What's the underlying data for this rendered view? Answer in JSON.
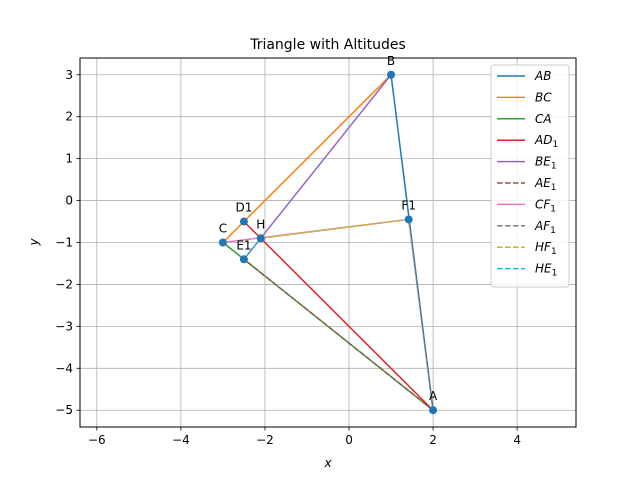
{
  "chart_data": {
    "type": "line",
    "title": "Triangle with Altitudes",
    "xlabel": "x",
    "ylabel": "y",
    "xlim": [
      -6.4,
      5.4
    ],
    "ylim": [
      -5.4,
      3.4
    ],
    "xticks": [
      -6,
      -4,
      -2,
      0,
      2,
      4
    ],
    "yticks": [
      -5,
      -4,
      -3,
      -2,
      -1,
      0,
      1,
      2,
      3
    ],
    "xtick_labels": [
      "−6",
      "−4",
      "−2",
      "0",
      "2",
      "4"
    ],
    "ytick_labels": [
      "−5",
      "−4",
      "−3",
      "−2",
      "−1",
      "0",
      "1",
      "2",
      "3"
    ],
    "grid": true,
    "legend_position": "upper right",
    "points": [
      {
        "label": "A",
        "x": 2,
        "y": -5
      },
      {
        "label": "B",
        "x": 1,
        "y": 3
      },
      {
        "label": "C",
        "x": -3,
        "y": -1
      },
      {
        "label": "D1",
        "x": -2.5,
        "y": -0.5
      },
      {
        "label": "E1",
        "x": -2.5,
        "y": -1.4
      },
      {
        "label": "F1",
        "x": 1.42,
        "y": -0.45
      },
      {
        "label": "H",
        "x": -2.1,
        "y": -0.9
      }
    ],
    "series": [
      {
        "name": "AB",
        "tex": [
          "AB",
          ""
        ],
        "color": "#1f77b4",
        "dash": "solid",
        "x": [
          2,
          1
        ],
        "y": [
          -5,
          3
        ]
      },
      {
        "name": "BC",
        "tex": [
          "BC",
          ""
        ],
        "color": "#ff7f0e",
        "dash": "solid",
        "x": [
          1,
          -3
        ],
        "y": [
          3,
          -1
        ]
      },
      {
        "name": "CA",
        "tex": [
          "CA",
          ""
        ],
        "color": "#2ca02c",
        "dash": "solid",
        "x": [
          -3,
          2
        ],
        "y": [
          -1,
          -5
        ]
      },
      {
        "name": "AD1",
        "tex": [
          "AD",
          "1"
        ],
        "color": "#d62728",
        "dash": "solid",
        "x": [
          2,
          -2.5
        ],
        "y": [
          -5,
          -0.5
        ]
      },
      {
        "name": "BE1",
        "tex": [
          "BE",
          "1"
        ],
        "color": "#9467bd",
        "dash": "solid",
        "x": [
          1,
          -2.5
        ],
        "y": [
          3,
          -1.4
        ]
      },
      {
        "name": "AE1",
        "tex": [
          "AE",
          "1"
        ],
        "color": "#8c564b",
        "dash": "dashed",
        "x": [
          2,
          -2.5
        ],
        "y": [
          -5,
          -1.4
        ]
      },
      {
        "name": "CF1",
        "tex": [
          "CF",
          "1"
        ],
        "color": "#e377c2",
        "dash": "solid",
        "x": [
          -3,
          1.42
        ],
        "y": [
          -1,
          -0.45
        ]
      },
      {
        "name": "AF1",
        "tex": [
          "AF",
          "1"
        ],
        "color": "#7f7f7f",
        "dash": "dashed",
        "x": [
          2,
          1.42
        ],
        "y": [
          -5,
          -0.45
        ]
      },
      {
        "name": "HF1",
        "tex": [
          "HF",
          "1"
        ],
        "color": "#bcbd22",
        "dash": "dashed",
        "x": [
          -2.1,
          1.42
        ],
        "y": [
          -0.9,
          -0.45
        ]
      },
      {
        "name": "HE1",
        "tex": [
          "HE",
          "1"
        ],
        "color": "#17becf",
        "dash": "dashed",
        "x": [
          -2.1,
          -2.5
        ],
        "y": [
          -0.9,
          -1.4
        ]
      }
    ],
    "marker_color": "#1f77b4"
  }
}
